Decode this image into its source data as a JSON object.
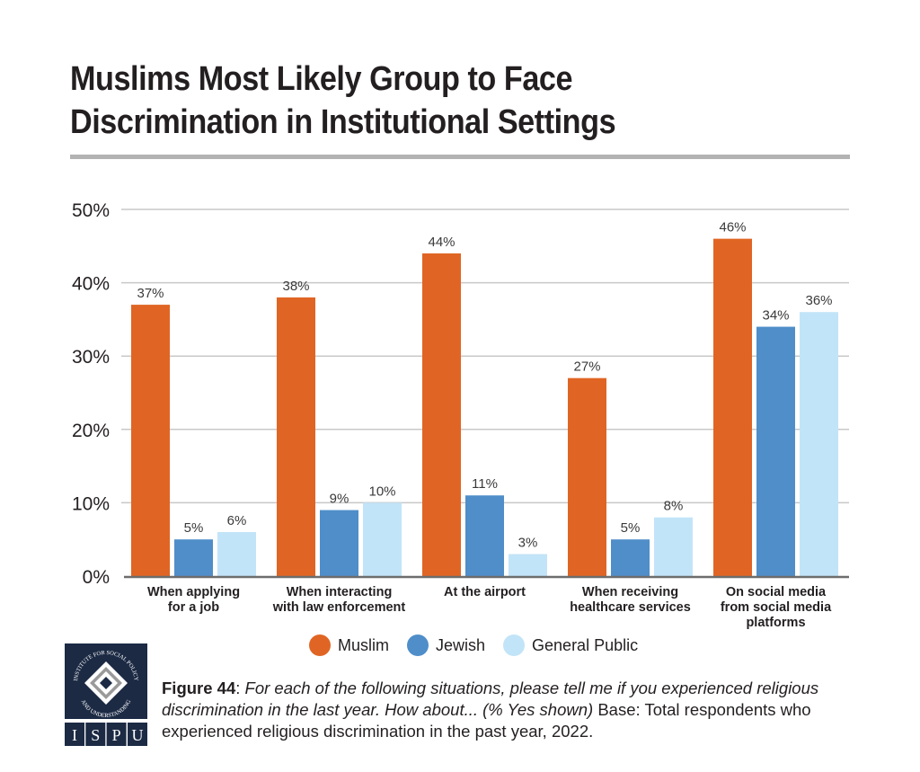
{
  "header": {
    "title": "Muslims Most Likely Group to Face Discrimination in Institutional Settings"
  },
  "chart_data": {
    "type": "bar",
    "title": "Muslims Most Likely Group to Face Discrimination in Institutional Settings",
    "xlabel": "",
    "ylabel": "",
    "ylim": [
      0,
      50
    ],
    "yticks": [
      0,
      10,
      20,
      30,
      40,
      50
    ],
    "ytick_labels": [
      "0%",
      "10%",
      "20%",
      "30%",
      "40%",
      "50%"
    ],
    "grid": true,
    "legend_position": "bottom-center",
    "categories": [
      [
        "When applying",
        "for a job"
      ],
      [
        "When interacting",
        "with law enforcement"
      ],
      [
        "At the airport"
      ],
      [
        "When receiving",
        "healthcare services"
      ],
      [
        "On social media",
        "from social media",
        "platforms"
      ]
    ],
    "series": [
      {
        "name": "Muslim",
        "color": "#e06524",
        "values": [
          37,
          38,
          44,
          27,
          46
        ],
        "labels": [
          "37%",
          "38%",
          "44%",
          "27%",
          "46%"
        ]
      },
      {
        "name": "Jewish",
        "color": "#4f8ec9",
        "values": [
          5,
          9,
          11,
          5,
          34
        ],
        "labels": [
          "5%",
          "9%",
          "11%",
          "5%",
          "34%"
        ]
      },
      {
        "name": "General Public",
        "color": "#c2e4f8",
        "values": [
          6,
          10,
          3,
          8,
          36
        ],
        "labels": [
          "6%",
          "10%",
          "3%",
          "8%",
          "36%"
        ]
      }
    ]
  },
  "legend": {
    "items": [
      {
        "label": "Muslim",
        "color": "#e06524"
      },
      {
        "label": "Jewish",
        "color": "#4f8ec9"
      },
      {
        "label": "General Public",
        "color": "#c2e4f8"
      }
    ]
  },
  "logo": {
    "ring_text_top": "INSTITUTE FOR SOCIAL POLICY",
    "ring_text_bottom": "AND UNDERSTANDING",
    "letters": [
      "I",
      "S",
      "P",
      "U"
    ]
  },
  "caption": {
    "figure": "Figure 44",
    "colon": ": ",
    "question": "For each of the following situations, please tell me if you experienced religious discrimination in the last year. How about... (% Yes shown)",
    "base": " Base: Total respondents who experienced religious discrimination in the past year, 2022."
  }
}
